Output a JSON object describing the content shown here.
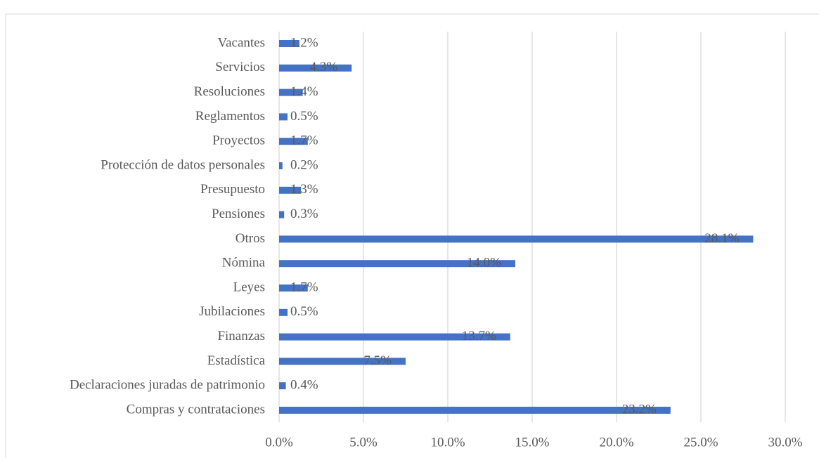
{
  "chart_data": {
    "type": "bar",
    "orientation": "horizontal",
    "color": "#4472c4",
    "categories": [
      "Vacantes",
      "Servicios",
      "Resoluciones",
      "Reglamentos",
      "Proyectos",
      "Protección de datos personales",
      "Presupuesto",
      "Pensiones",
      "Otros",
      "Nómina",
      "Leyes",
      "Jubilaciones",
      "Finanzas",
      "Estadística",
      "Declaraciones juradas de patrimonio",
      "Compras y contrataciones"
    ],
    "values": [
      1.2,
      4.3,
      1.4,
      0.5,
      1.7,
      0.2,
      1.3,
      0.3,
      28.1,
      14.0,
      1.7,
      0.5,
      13.7,
      7.5,
      0.4,
      23.2
    ],
    "value_labels": [
      "1.2%",
      "4.3%",
      "1.4%",
      "0.5%",
      "1.7%",
      "0.2%",
      "1.3%",
      "0.3%",
      "28.1%",
      "14.0%",
      "1.7%",
      "0.5%",
      "13.7%",
      "7.5%",
      "0.4%",
      "23.2%"
    ],
    "xlim": [
      0,
      30
    ],
    "xticks": [
      {
        "value": 0,
        "label": "0.0%"
      },
      {
        "value": 5,
        "label": "5.0%"
      },
      {
        "value": 10,
        "label": "10.0%"
      },
      {
        "value": 15,
        "label": "15.0%"
      },
      {
        "value": 20,
        "label": "20.0%"
      },
      {
        "value": 25,
        "label": "25.0%"
      },
      {
        "value": 30,
        "label": "30.0%"
      }
    ],
    "grid": true
  }
}
